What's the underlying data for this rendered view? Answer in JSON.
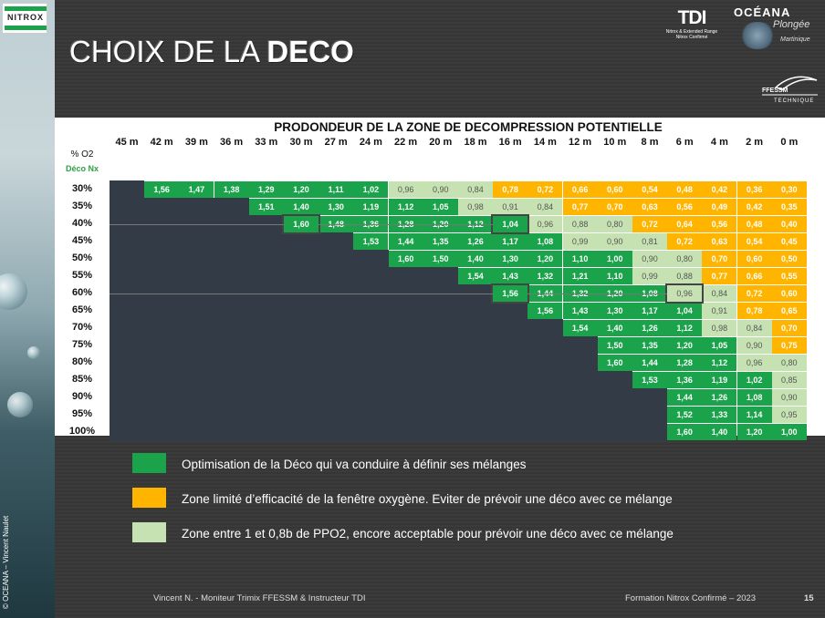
{
  "slide": {
    "title_light": "CHOIX DE LA ",
    "title_bold": "DECO",
    "logo_nitrox": "NITROX",
    "logo_tdi": "TDI",
    "logo_tdi_sub1": "Nitrox & Extended Range",
    "logo_tdi_sub2": "Nitrox Confirmé",
    "logo_oceana": "OCÉANA",
    "logo_oceana_sub": "Plongée",
    "logo_oceana_region": "Martinique",
    "logo_ffessm": "FFESSM",
    "logo_ffessm_sub": "TECHNIQUE",
    "copyright": "© OCEANA – Vincent Naulet",
    "footer_left": "Vincent N. - Moniteur Trimix FFESSM & Instructeur TDI",
    "footer_right": "Formation Nitrox Confirmé – 2023",
    "page_number": "15"
  },
  "table": {
    "title": "PRODONDEUR DE LA ZONE DE DECOMPRESSION POTENTIELLE",
    "o2_label": "% O2",
    "deco_label": "Déco Nx",
    "depths": [
      "45 m",
      "42 m",
      "39 m",
      "36 m",
      "33 m",
      "30 m",
      "27 m",
      "24 m",
      "22 m",
      "20 m",
      "18 m",
      "16 m",
      "14 m",
      "12 m",
      "10 m",
      "8 m",
      "6 m",
      "4 m",
      "2 m",
      "0 m"
    ],
    "rows": [
      {
        "label": "30%",
        "start": 1,
        "values": [
          "1,56",
          "1,47",
          "1,38",
          "1,29",
          "1,20",
          "1,11",
          "1,02",
          "0,96",
          "0,90",
          "0,84",
          "0,78",
          "0,72",
          "0,66",
          "0,60",
          "0,54",
          "0,48",
          "0,42",
          "0,36",
          "0,30"
        ],
        "zones": "GGGGGGGLLLOOOOOOOOO"
      },
      {
        "label": "35%",
        "start": 4,
        "values": [
          "1,51",
          "1,40",
          "1,30",
          "1,19",
          "1,12",
          "1,05",
          "0,98",
          "0,91",
          "0,84",
          "0,77",
          "0,70",
          "0,63",
          "0,56",
          "0,49",
          "0,42",
          "0,35"
        ],
        "zones": "GGGGGGLLLOOOOOOO"
      },
      {
        "label": "40%",
        "start": 5,
        "values": [
          "1,60",
          "1,48",
          "1,36",
          "1,28",
          "1,20",
          "1,12",
          "1,04",
          "0,96",
          "0,88",
          "0,80",
          "0,72",
          "0,64",
          "0,56",
          "0,48",
          "0,40"
        ],
        "zones": "GGGGGGGLLLOOOOO"
      },
      {
        "label": "45%",
        "start": 7,
        "values": [
          "1,53",
          "1,44",
          "1,35",
          "1,26",
          "1,17",
          "1,08",
          "0,99",
          "0,90",
          "0,81",
          "0,72",
          "0,63",
          "0,54",
          "0,45"
        ],
        "zones": "GGGGGGLLLOOOO"
      },
      {
        "label": "50%",
        "start": 8,
        "values": [
          "1,60",
          "1,50",
          "1,40",
          "1,30",
          "1,20",
          "1,10",
          "1,00",
          "0,90",
          "0,80",
          "0,70",
          "0,60",
          "0,50"
        ],
        "zones": "GGGGGGGLLOOO"
      },
      {
        "label": "55%",
        "start": 10,
        "values": [
          "1,54",
          "1,43",
          "1,32",
          "1,21",
          "1,10",
          "0,99",
          "0,88",
          "0,77",
          "0,66",
          "0,55"
        ],
        "zones": "GGGGGLLOOO"
      },
      {
        "label": "60%",
        "start": 11,
        "values": [
          "1,56",
          "1,44",
          "1,32",
          "1,20",
          "1,08",
          "0,96",
          "0,84",
          "0,72",
          "0,60"
        ],
        "zones": "GGGGGLLOO"
      },
      {
        "label": "65%",
        "start": 12,
        "values": [
          "1,56",
          "1,43",
          "1,30",
          "1,17",
          "1,04",
          "0,91",
          "0,78",
          "0,65"
        ],
        "zones": "GGGGGLOO"
      },
      {
        "label": "70%",
        "start": 13,
        "values": [
          "1,54",
          "1,40",
          "1,26",
          "1,12",
          "0,98",
          "0,84",
          "0,70"
        ],
        "zones": "GGGGLLO"
      },
      {
        "label": "75%",
        "start": 14,
        "values": [
          "1,50",
          "1,35",
          "1,20",
          "1,05",
          "0,90",
          "0,75"
        ],
        "zones": "GGGGLO"
      },
      {
        "label": "80%",
        "start": 14,
        "values": [
          "1,60",
          "1,44",
          "1,28",
          "1,12",
          "0,96",
          "0,80"
        ],
        "zones": "GGGGLL"
      },
      {
        "label": "85%",
        "start": 15,
        "values": [
          "1,53",
          "1,36",
          "1,19",
          "1,02",
          "0,85"
        ],
        "zones": "GGGGL"
      },
      {
        "label": "90%",
        "start": 16,
        "values": [
          "1,44",
          "1,26",
          "1,08",
          "0,90"
        ],
        "zones": "GGGL"
      },
      {
        "label": "95%",
        "start": 16,
        "values": [
          "1,52",
          "1,33",
          "1,14",
          "0,95"
        ],
        "zones": "GGGL"
      },
      {
        "label": "100%",
        "start": 16,
        "values": [
          "1,60",
          "1,40",
          "1,20",
          "1,00"
        ],
        "zones": "GGGG"
      }
    ],
    "colors": {
      "green": "#1aa34a",
      "orange": "#ffb400",
      "light": "#c6e2b3",
      "dark": "#333b47"
    }
  },
  "legend": [
    {
      "color": "#1aa34a",
      "text": "Optimisation de la Déco qui va conduire à définir ses mélanges"
    },
    {
      "color": "#ffb400",
      "text": "Zone limité d’efficacité de la fenêtre oxygène. Eviter de prévoir une déco avec ce mélange"
    },
    {
      "color": "#c6e2b3",
      "text": "Zone entre 1 et 0,8b de PPO2, encore acceptable pour prévoir une déco avec ce mélange"
    }
  ]
}
